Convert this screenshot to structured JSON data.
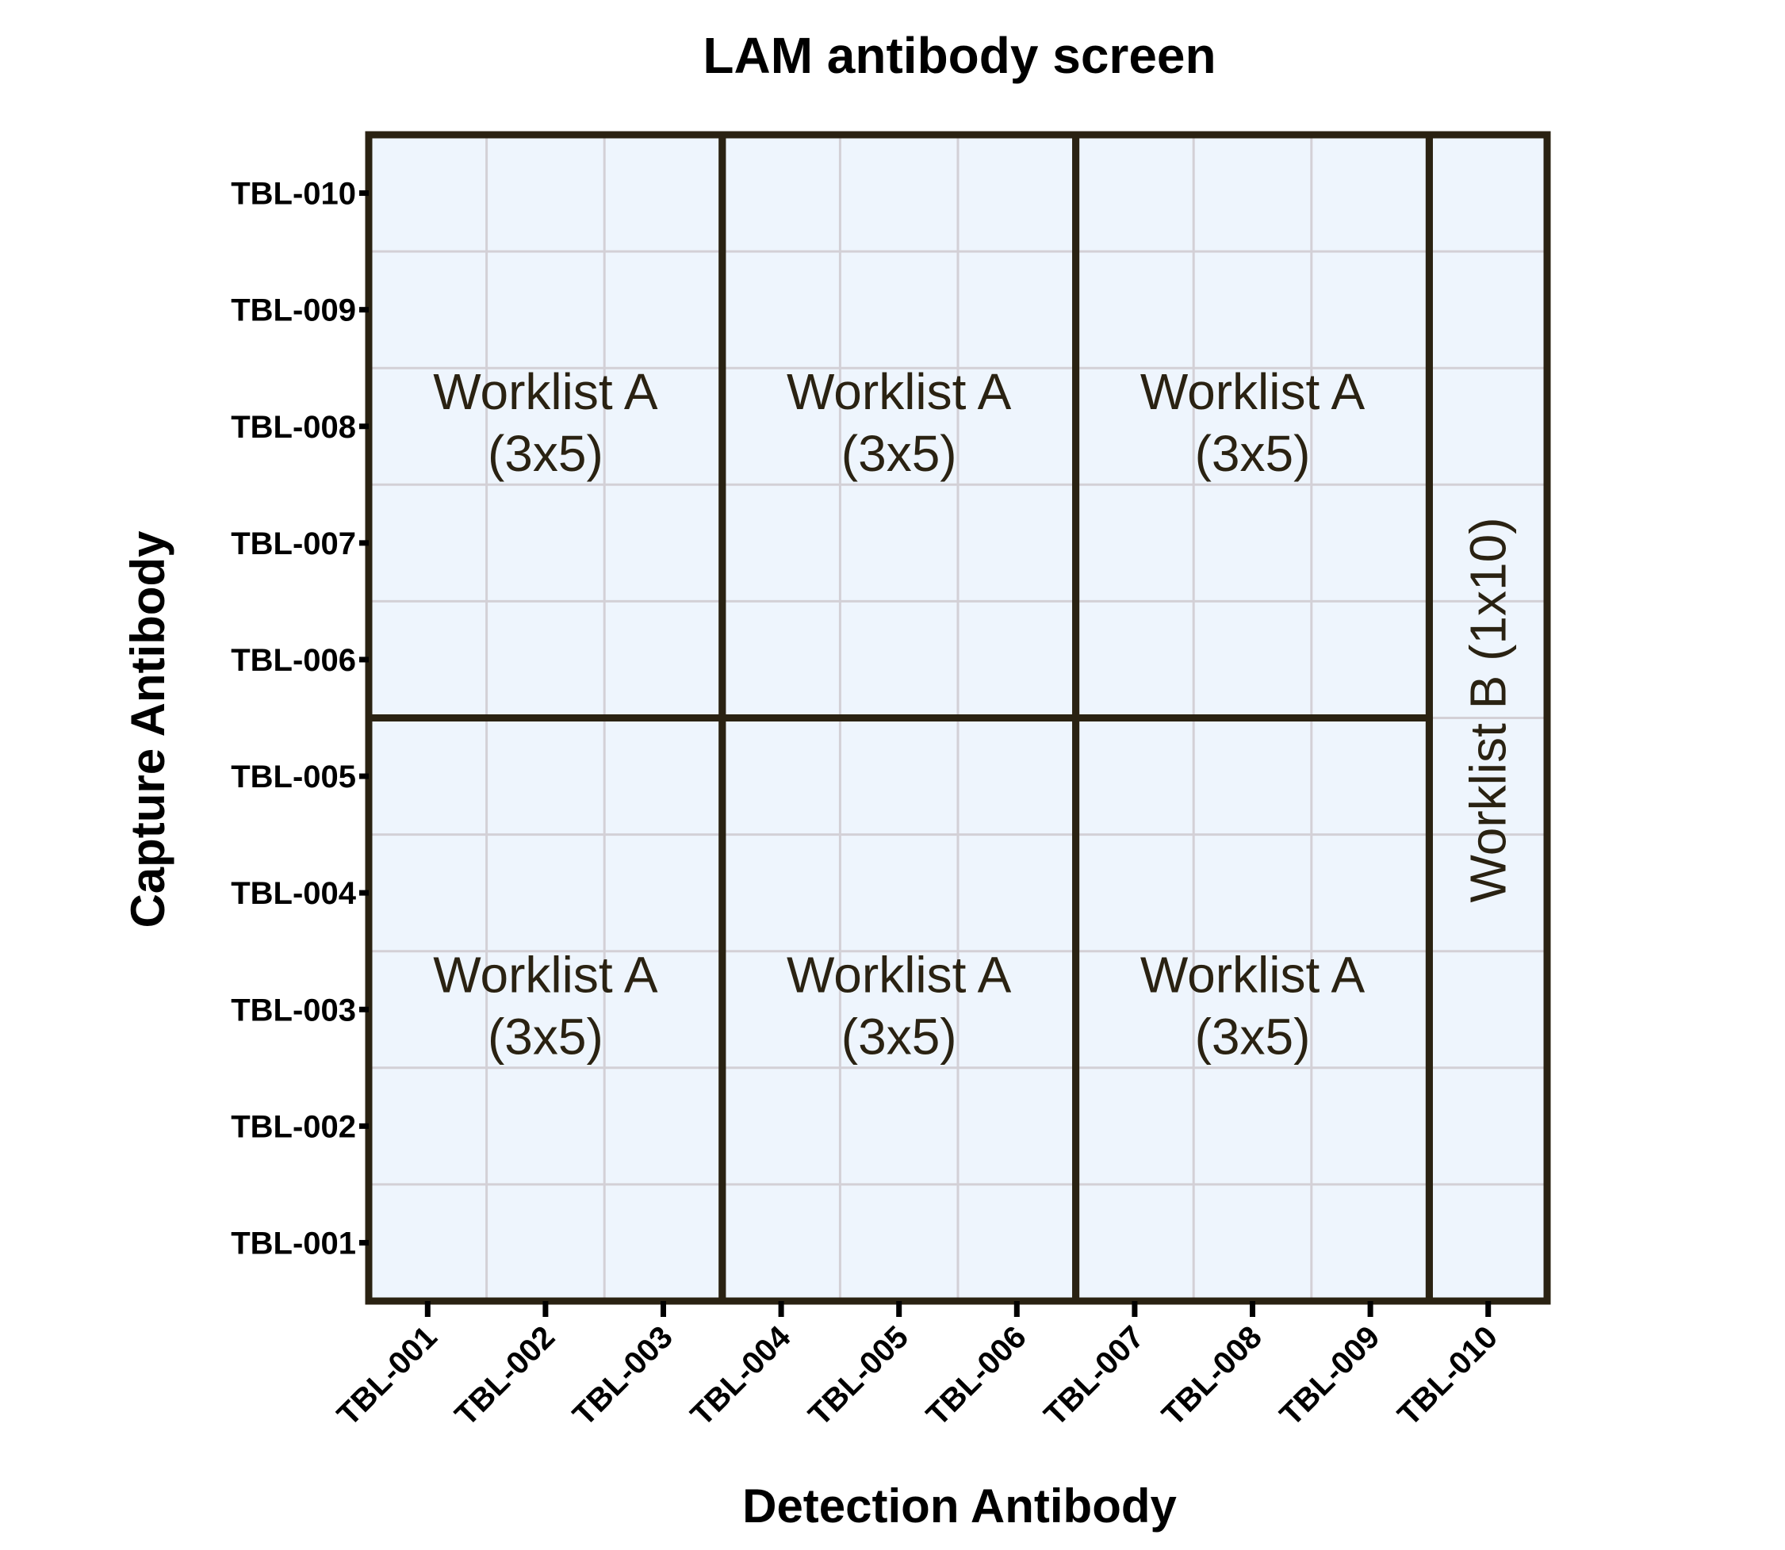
{
  "title": "LAM antibody screen",
  "x_axis_label": "Detection Antibody",
  "y_axis_label": "Capture Antibody",
  "x_ticks": [
    "TBL-001",
    "TBL-002",
    "TBL-003",
    "TBL-004",
    "TBL-005",
    "TBL-006",
    "TBL-007",
    "TBL-008",
    "TBL-009",
    "TBL-010"
  ],
  "y_ticks": [
    "TBL-001",
    "TBL-002",
    "TBL-003",
    "TBL-004",
    "TBL-005",
    "TBL-006",
    "TBL-007",
    "TBL-008",
    "TBL-009",
    "TBL-010"
  ],
  "blocks": [
    {
      "line1": "Worklist A",
      "line2": "(3x5)",
      "x_range": [
        "TBL-001",
        "TBL-003"
      ],
      "y_range": [
        "TBL-006",
        "TBL-010"
      ]
    },
    {
      "line1": "Worklist A",
      "line2": "(3x5)",
      "x_range": [
        "TBL-004",
        "TBL-006"
      ],
      "y_range": [
        "TBL-006",
        "TBL-010"
      ]
    },
    {
      "line1": "Worklist A",
      "line2": "(3x5)",
      "x_range": [
        "TBL-007",
        "TBL-009"
      ],
      "y_range": [
        "TBL-006",
        "TBL-010"
      ]
    },
    {
      "line1": "Worklist A",
      "line2": "(3x5)",
      "x_range": [
        "TBL-001",
        "TBL-003"
      ],
      "y_range": [
        "TBL-001",
        "TBL-005"
      ]
    },
    {
      "line1": "Worklist A",
      "line2": "(3x5)",
      "x_range": [
        "TBL-004",
        "TBL-006"
      ],
      "y_range": [
        "TBL-001",
        "TBL-005"
      ]
    },
    {
      "line1": "Worklist A",
      "line2": "(3x5)",
      "x_range": [
        "TBL-007",
        "TBL-009"
      ],
      "y_range": [
        "TBL-001",
        "TBL-005"
      ]
    },
    {
      "line1": "Worklist B (1x10)",
      "line2": "",
      "x_range": [
        "TBL-010",
        "TBL-010"
      ],
      "y_range": [
        "TBL-001",
        "TBL-010"
      ],
      "orientation": "vertical"
    }
  ],
  "colors": {
    "cell_fill": "#eef5fd",
    "grid_line": "#d3d0d6",
    "block_border": "#2a2212",
    "label_text": "#2a2212"
  }
}
